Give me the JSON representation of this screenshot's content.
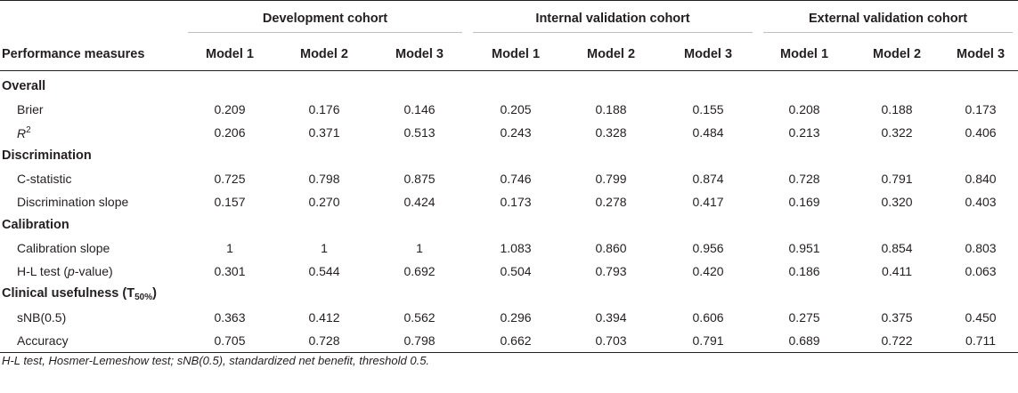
{
  "header": {
    "groups": [
      "Development cohort",
      "Internal validation cohort",
      "External validation cohort"
    ],
    "first_col": "Performance measures",
    "models": [
      "Model 1",
      "Model 2",
      "Model 3",
      "Model 1",
      "Model 2",
      "Model 3",
      "Model 1",
      "Model 2",
      "Model 3"
    ]
  },
  "sections": {
    "overall": "Overall",
    "discrimination": "Discrimination",
    "calibration": "Calibration",
    "clinical_prefix": "Clinical usefulness (T",
    "clinical_sub": "50%",
    "clinical_suffix": ")"
  },
  "rows": {
    "brier": {
      "label": "Brier",
      "values": [
        "0.209",
        "0.176",
        "0.146",
        "0.205",
        "0.188",
        "0.155",
        "0.208",
        "0.188",
        "0.173"
      ]
    },
    "r2": {
      "label_main": "R",
      "label_sup": "2",
      "values": [
        "0.206",
        "0.371",
        "0.513",
        "0.243",
        "0.328",
        "0.484",
        "0.213",
        "0.322",
        "0.406"
      ]
    },
    "cstat": {
      "label": "C-statistic",
      "values": [
        "0.725",
        "0.798",
        "0.875",
        "0.746",
        "0.799",
        "0.874",
        "0.728",
        "0.791",
        "0.840"
      ]
    },
    "dslope": {
      "label": "Discrimination slope",
      "values": [
        "0.157",
        "0.270",
        "0.424",
        "0.173",
        "0.278",
        "0.417",
        "0.169",
        "0.320",
        "0.403"
      ]
    },
    "cslope": {
      "label": "Calibration slope",
      "values": [
        "1",
        "1",
        "1",
        "1.083",
        "0.860",
        "0.956",
        "0.951",
        "0.854",
        "0.803"
      ]
    },
    "hl": {
      "label_pre": "H-L test (",
      "label_italic": "p",
      "label_post": "-value)",
      "values": [
        "0.301",
        "0.544",
        "0.692",
        "0.504",
        "0.793",
        "0.420",
        "0.186",
        "0.411",
        "0.063"
      ]
    },
    "snb": {
      "label": "sNB(0.5)",
      "values": [
        "0.363",
        "0.412",
        "0.562",
        "0.296",
        "0.394",
        "0.606",
        "0.275",
        "0.375",
        "0.450"
      ]
    },
    "acc": {
      "label": "Accuracy",
      "values": [
        "0.705",
        "0.728",
        "0.798",
        "0.662",
        "0.703",
        "0.791",
        "0.689",
        "0.722",
        "0.711"
      ]
    }
  },
  "footnote": "H-L test, Hosmer-Lemeshow test; sNB(0.5), standardized net benefit, threshold 0.5."
}
